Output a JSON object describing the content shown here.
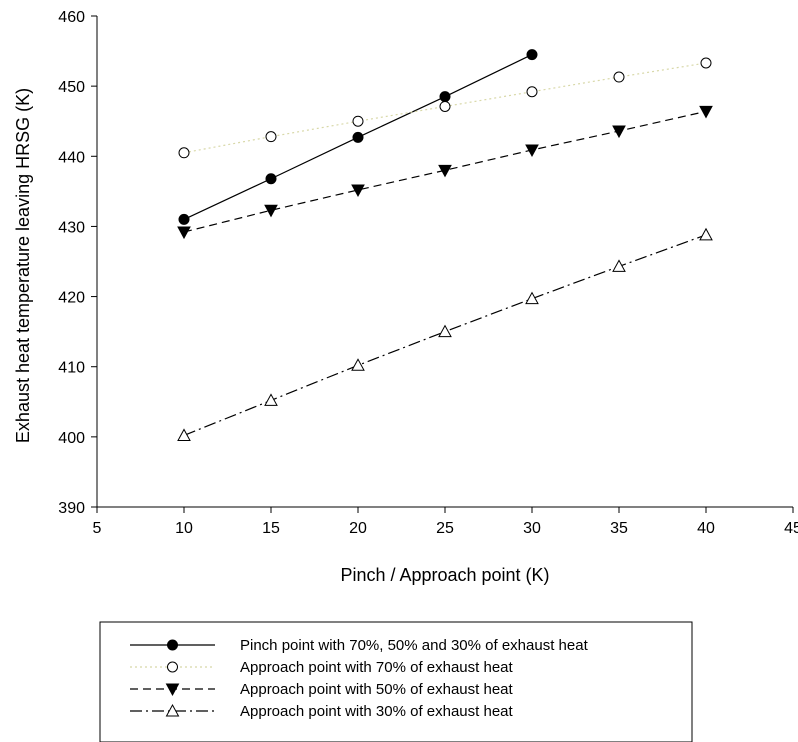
{
  "chart_data": {
    "type": "line",
    "xlabel": "Pinch / Approach point (K)",
    "ylabel": "Exhaust heat temperature leaving HRSG (K)",
    "xlim": [
      5,
      45
    ],
    "ylim": [
      390,
      460
    ],
    "xticks": [
      5,
      10,
      15,
      20,
      25,
      30,
      35,
      40,
      45
    ],
    "yticks": [
      390,
      400,
      410,
      420,
      430,
      440,
      450,
      460
    ],
    "grid": false,
    "legend_position": "bottom",
    "series": [
      {
        "name": "Pinch point with 70%, 50% and 30% of exhaust heat",
        "marker": "filled-circle",
        "line_style": "solid",
        "color": "#000000",
        "x": [
          10,
          15,
          20,
          25,
          30
        ],
        "y": [
          431.0,
          436.8,
          442.7,
          448.5,
          454.5
        ]
      },
      {
        "name": "Approach point with 70% of exhaust heat",
        "marker": "open-circle",
        "line_style": "dotted",
        "color": "#d8d8a8",
        "x": [
          10,
          15,
          20,
          25,
          30,
          35,
          40
        ],
        "y": [
          440.5,
          442.8,
          445.0,
          447.1,
          449.2,
          451.3,
          453.3
        ]
      },
      {
        "name": "Approach point with 50% of exhaust heat",
        "marker": "filled-triangle-down",
        "line_style": "dashed",
        "color": "#000000",
        "x": [
          10,
          15,
          20,
          25,
          30,
          35,
          40
        ],
        "y": [
          429.2,
          432.3,
          435.2,
          438.0,
          440.9,
          443.6,
          446.4
        ]
      },
      {
        "name": "Approach point with 30% of exhaust heat",
        "marker": "open-triangle-up",
        "line_style": "dash-dot",
        "color": "#000000",
        "x": [
          10,
          15,
          20,
          25,
          30,
          35,
          40
        ],
        "y": [
          400.2,
          405.2,
          410.2,
          415.0,
          419.7,
          424.3,
          428.8
        ]
      }
    ]
  }
}
